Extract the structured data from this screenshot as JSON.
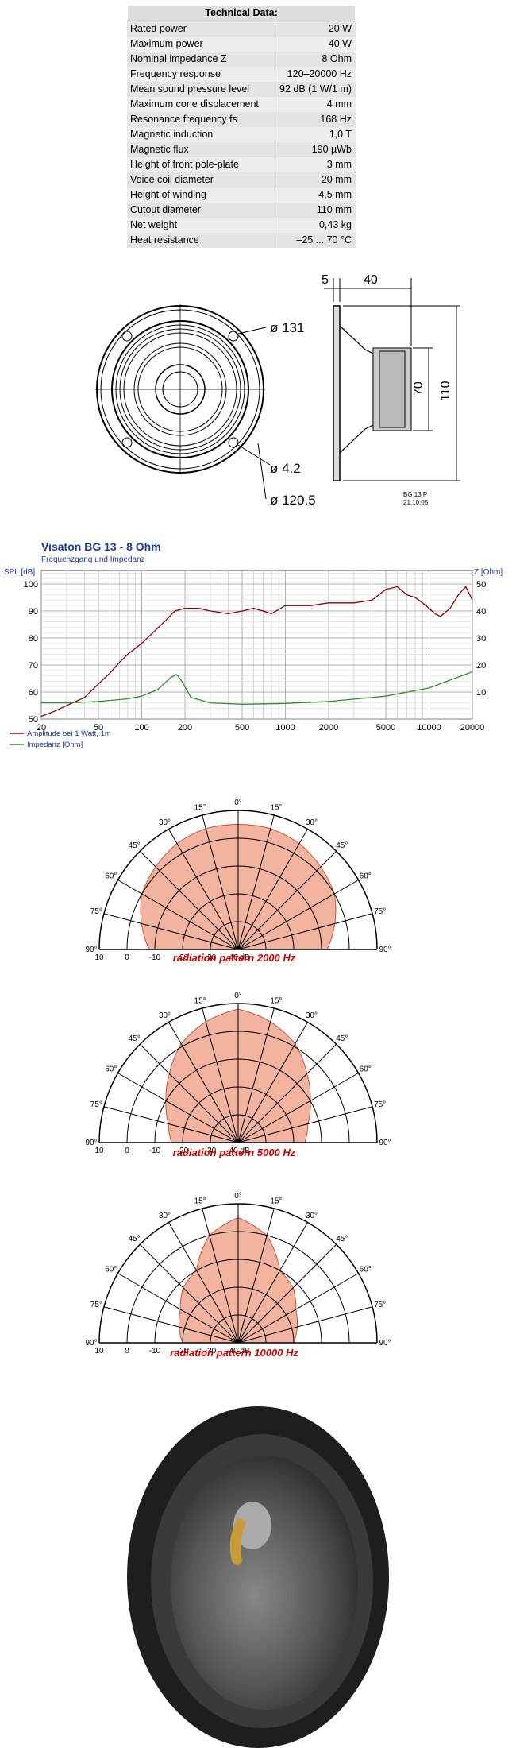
{
  "technical": {
    "title": "Technical Data:",
    "rows": [
      {
        "k": "Rated power",
        "v": "20 W"
      },
      {
        "k": "Maximum power",
        "v": "40 W"
      },
      {
        "k": "Nominal impedance Z",
        "v": "8 Ohm"
      },
      {
        "k": "Frequency response",
        "v": "120–20000 Hz"
      },
      {
        "k": "Mean sound pressure level",
        "v": "92 dB (1 W/1 m)"
      },
      {
        "k": "Maximum cone displacement",
        "v": "4 mm"
      },
      {
        "k": "Resonance frequency fs",
        "v": "168 Hz"
      },
      {
        "k": "Magnetic induction",
        "v": "1,0 T"
      },
      {
        "k": "Magnetic flux",
        "v": "190 µWb"
      },
      {
        "k": "Height of front pole-plate",
        "v": "3 mm"
      },
      {
        "k": "Voice coil diameter",
        "v": "20 mm"
      },
      {
        "k": "Height of winding",
        "v": "4,5 mm"
      },
      {
        "k": "Cutout diameter",
        "v": "110 mm"
      },
      {
        "k": "Net weight",
        "v": "0,43 kg"
      },
      {
        "k": "Heat resistance",
        "v": "–25 ... 70 °C"
      }
    ]
  },
  "drawing": {
    "dia_131": "ø 131",
    "dia_42": "ø 4.2",
    "dia_1205": "ø 120.5",
    "dim_5": "5",
    "dim_40": "40",
    "dim_70": "70",
    "dim_110": "110",
    "stamp1": "BG 13 P",
    "stamp2": "21.10.05"
  },
  "chart_data": [
    {
      "type": "line",
      "title": "Visaton BG 13 - 8 Ohm",
      "subtitle": "Frequenzgang und Impedanz",
      "ylabel": "SPL [dB]",
      "y2label": "Z [Ohm]",
      "xscale": "log",
      "xlim": [
        20,
        20000
      ],
      "ylim": [
        50,
        105
      ],
      "y2lim": [
        0,
        55
      ],
      "xticks": [
        "20",
        "50",
        "100",
        "200",
        "500",
        "1000",
        "2000",
        "5000",
        "10000",
        "20000"
      ],
      "yticks": [
        "50",
        "60",
        "70",
        "80",
        "90",
        "100"
      ],
      "y2ticks": [
        "10",
        "20",
        "30",
        "40",
        "50"
      ],
      "legend": [
        "Amplitude bei 1 Watt, 1m",
        "Impedanz [Ohm]"
      ],
      "series": [
        {
          "name": "Amplitude bei 1 Watt, 1m",
          "color": "#8b0000",
          "x": [
            20,
            25,
            30,
            40,
            50,
            60,
            70,
            80,
            100,
            120,
            150,
            170,
            200,
            250,
            300,
            400,
            500,
            600,
            700,
            800,
            1000,
            1200,
            1500,
            2000,
            2500,
            3000,
            4000,
            5000,
            6000,
            7000,
            8000,
            9000,
            10000,
            11000,
            12000,
            14000,
            16000,
            18000,
            20000
          ],
          "y": [
            51,
            53,
            55,
            58,
            63,
            67,
            71,
            74,
            78,
            82,
            87,
            90,
            91,
            91,
            90,
            89,
            90,
            91,
            90,
            89,
            92,
            92,
            92,
            93,
            93,
            93,
            94,
            98,
            99,
            96,
            95,
            93,
            91,
            89,
            88,
            91,
            96,
            99,
            94
          ]
        },
        {
          "name": "Impedanz [Ohm]",
          "color": "#2e8b2e",
          "x": [
            20,
            30,
            50,
            80,
            100,
            130,
            160,
            175,
            190,
            220,
            300,
            500,
            1000,
            2000,
            5000,
            10000,
            20000
          ],
          "y": [
            6,
            6,
            6.5,
            7.5,
            8.5,
            11,
            15.5,
            16.5,
            14,
            8,
            6,
            5.5,
            5.8,
            6.5,
            8.5,
            11.5,
            17.5
          ]
        }
      ]
    },
    {
      "type": "polar",
      "title": "radiation pattern 2000 Hz",
      "angles": [
        0,
        15,
        30,
        45,
        60,
        75,
        90
      ],
      "radial_ticks": [
        "10",
        "0",
        "-10",
        "-20",
        "-30",
        "-40 dB"
      ],
      "angle_labels": [
        "0°",
        "15°",
        "30°",
        "45°",
        "60°",
        "75°",
        "90°"
      ],
      "values_db": [
        5,
        5,
        4,
        2,
        0,
        -4,
        -8
      ]
    },
    {
      "type": "polar",
      "title": "radiation pattern 5000 Hz",
      "angles": [
        0,
        15,
        30,
        45,
        60,
        75,
        90
      ],
      "radial_ticks": [
        "10",
        "0",
        "-10",
        "-20",
        "-30",
        "-40 dB"
      ],
      "angle_labels": [
        "0°",
        "15°",
        "30°",
        "45°",
        "60°",
        "75°",
        "90°"
      ],
      "values_db": [
        8,
        5,
        1,
        -5,
        -10,
        -14,
        -16
      ]
    },
    {
      "type": "polar",
      "title": "radiation pattern 10000 Hz",
      "angles": [
        0,
        15,
        30,
        45,
        60,
        75,
        90
      ],
      "radial_ticks": [
        "10",
        "0",
        "-10",
        "-20",
        "-30",
        "-40 dB"
      ],
      "angle_labels": [
        "0°",
        "15°",
        "30°",
        "45°",
        "60°",
        "75°",
        "90°"
      ],
      "values_db": [
        5,
        0,
        -10,
        -12,
        -16,
        -18,
        -20
      ]
    }
  ]
}
